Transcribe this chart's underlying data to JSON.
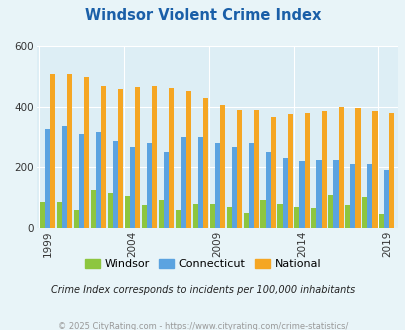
{
  "title": "Windsor Violent Crime Index",
  "years": [
    1999,
    2000,
    2001,
    2002,
    2003,
    2004,
    2005,
    2006,
    2007,
    2008,
    2009,
    2010,
    2011,
    2012,
    2013,
    2014,
    2015,
    2016,
    2017,
    2018,
    2019
  ],
  "windsor": [
    85,
    85,
    60,
    125,
    115,
    105,
    75,
    90,
    60,
    80,
    80,
    70,
    50,
    90,
    80,
    70,
    65,
    107,
    75,
    100,
    45
  ],
  "connecticut": [
    325,
    335,
    310,
    318,
    285,
    268,
    280,
    250,
    300,
    300,
    280,
    268,
    280,
    250,
    230,
    220,
    225,
    225,
    210,
    210,
    190
  ],
  "national": [
    507,
    507,
    497,
    470,
    460,
    465,
    470,
    462,
    452,
    428,
    404,
    390,
    390,
    365,
    375,
    380,
    385,
    400,
    395,
    385,
    380
  ],
  "windsor_color": "#8dc63f",
  "connecticut_color": "#5ba3e0",
  "national_color": "#f5a623",
  "background_color": "#e8f4f8",
  "plot_bg_color": "#ddeef5",
  "title_color": "#1a5fa8",
  "ylabel_max": 600,
  "yticks": [
    0,
    200,
    400,
    600
  ],
  "xlabel_ticks": [
    1999,
    2004,
    2009,
    2014,
    2019
  ],
  "note": "Crime Index corresponds to incidents per 100,000 inhabitants",
  "footer": "© 2025 CityRating.com - https://www.cityrating.com/crime-statistics/",
  "note_color": "#222222",
  "footer_color": "#999999"
}
